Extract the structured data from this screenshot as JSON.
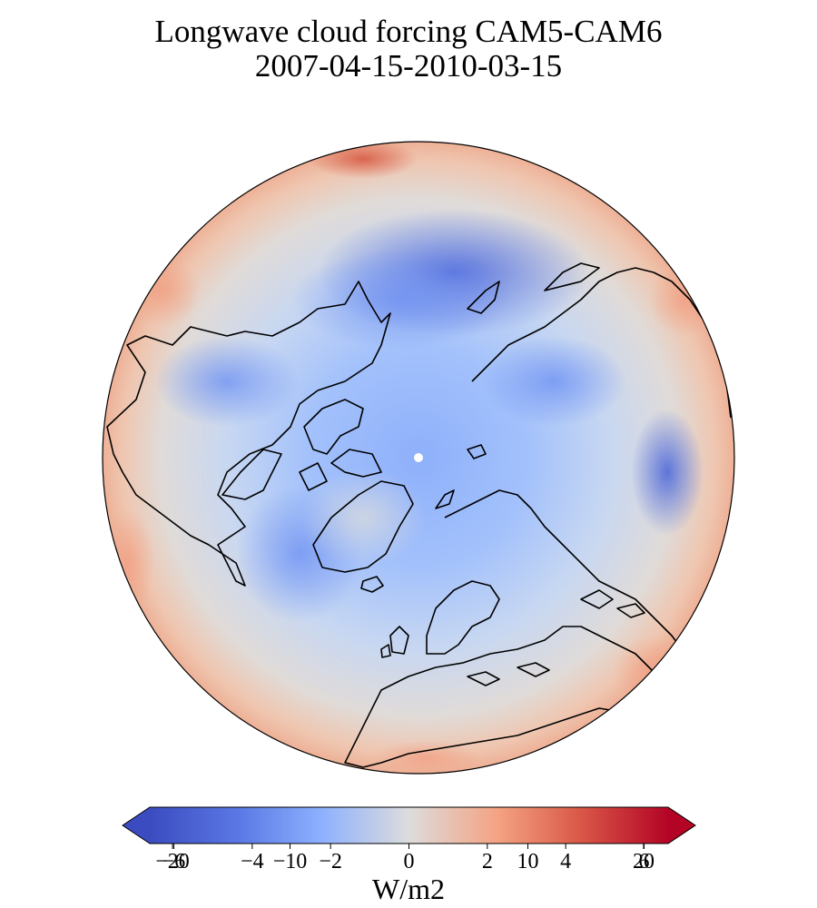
{
  "title": {
    "line1": "Longwave cloud forcing CAM5-CAM6",
    "line2": "2007-04-15-2010-03-15"
  },
  "map": {
    "projection": "north polar orthographic",
    "colormap": "coolwarm",
    "colors": {
      "deep_blue": "#3b4cc0",
      "mid_blue": "#6f92f3",
      "light_blue": "#aac7fd",
      "neutral": "#dddcdc",
      "light_red": "#f7b89c",
      "mid_red": "#e7745b",
      "deep_red": "#b40426"
    }
  },
  "colorbar": {
    "extend": "both",
    "unit": "W/m2",
    "ticks": [
      {
        "label": "−20",
        "value": -20
      },
      {
        "label": "−6",
        "value": -6
      },
      {
        "label": "−4",
        "value": -4
      },
      {
        "label": "−10",
        "value": -10
      },
      {
        "label": "−2",
        "value": -2
      },
      {
        "label": "0",
        "value": 0
      },
      {
        "label": "2",
        "value": 2
      },
      {
        "label": "10",
        "value": 10
      },
      {
        "label": "4",
        "value": 4
      },
      {
        "label": "6",
        "value": 6
      },
      {
        "label": "20",
        "value": 20
      }
    ]
  }
}
